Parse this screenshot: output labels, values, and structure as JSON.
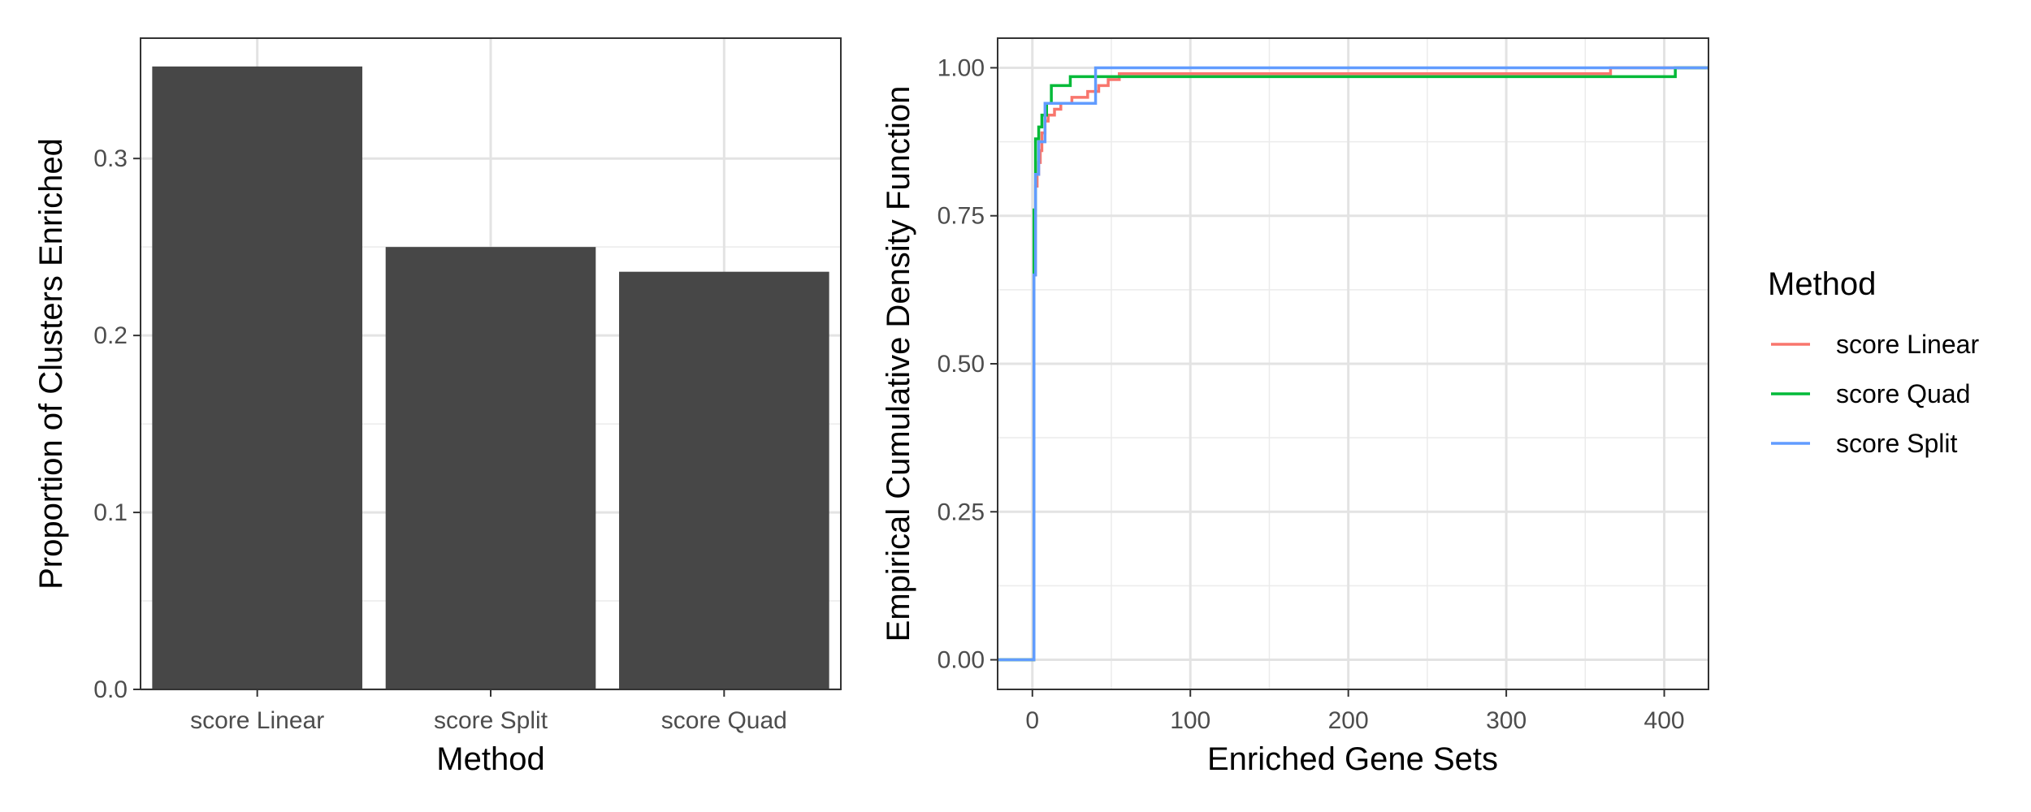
{
  "chart_data": [
    {
      "type": "bar",
      "xlabel": "Method",
      "ylabel": "Proportion of Clusters Enriched",
      "categories": [
        "score Linear",
        "score Split",
        "score Quad"
      ],
      "values": [
        0.352,
        0.25,
        0.236
      ],
      "ylim": [
        0,
        0.368
      ],
      "yticks": [
        0.0,
        0.1,
        0.2,
        0.3
      ],
      "ytick_labels": [
        "0.0",
        "0.1",
        "0.2",
        "0.3"
      ],
      "bar_color": "#474747",
      "grid": true
    },
    {
      "type": "line",
      "subtype": "step",
      "xlabel": "Enriched Gene Sets",
      "ylabel": "Empirical Cumulative Density Function",
      "xlim": [
        -22,
        428
      ],
      "ylim": [
        -0.05,
        1.05
      ],
      "xticks": [
        0,
        100,
        200,
        300,
        400
      ],
      "xtick_labels": [
        "0",
        "100",
        "200",
        "300",
        "400"
      ],
      "yticks": [
        0,
        0.25,
        0.5,
        0.75,
        1.0
      ],
      "ytick_labels": [
        "0.00",
        "0.25",
        "0.50",
        "0.75",
        "1.00"
      ],
      "grid": true,
      "legend": {
        "title": "Method",
        "position": "right"
      },
      "series": [
        {
          "name": "score Linear",
          "color": "#F8766D",
          "x": [
            -22,
            0,
            1,
            2,
            3,
            4,
            5,
            6,
            8,
            10,
            14,
            18,
            25,
            35,
            42,
            48,
            55,
            365,
            366,
            428
          ],
          "y": [
            0,
            0,
            0.65,
            0.8,
            0.82,
            0.84,
            0.86,
            0.89,
            0.91,
            0.92,
            0.93,
            0.94,
            0.95,
            0.96,
            0.97,
            0.98,
            0.99,
            0.99,
            1.0,
            1.0
          ]
        },
        {
          "name": "score Quad",
          "color": "#00BA38",
          "x": [
            -22,
            0,
            1,
            2,
            4,
            6,
            9,
            12,
            24,
            35,
            406,
            407,
            428
          ],
          "y": [
            0,
            0,
            0.76,
            0.88,
            0.9,
            0.92,
            0.94,
            0.97,
            0.985,
            0.985,
            0.985,
            1.0,
            1.0
          ]
        },
        {
          "name": "score Split",
          "color": "#619CFF",
          "x": [
            -22,
            0,
            1,
            2,
            4,
            8,
            10,
            40,
            428
          ],
          "y": [
            0,
            0,
            0.65,
            0.82,
            0.875,
            0.94,
            0.94,
            1.0,
            1.0
          ]
        }
      ]
    }
  ]
}
